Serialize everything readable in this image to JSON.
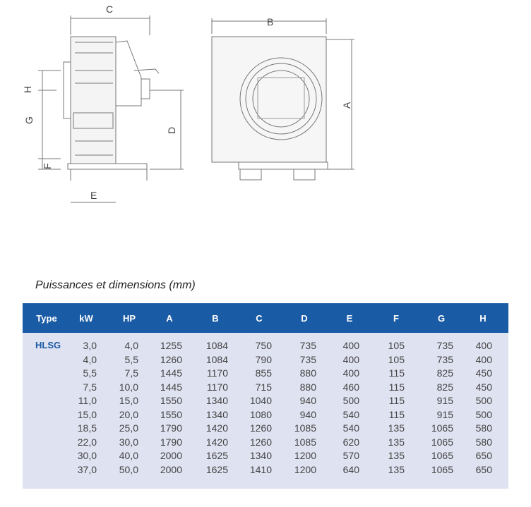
{
  "drawing": {
    "labels": [
      "C",
      "B",
      "A",
      "H",
      "G",
      "D",
      "F",
      "E"
    ]
  },
  "title": "Puissances et dimensions (mm)",
  "table": {
    "headers": [
      "Type",
      "kW",
      "HP",
      "A",
      "B",
      "C",
      "D",
      "E",
      "F",
      "G",
      "H"
    ],
    "type_value": "HLSG",
    "rows": [
      [
        "3,0",
        "4,0",
        "1255",
        "1084",
        "750",
        "735",
        "400",
        "105",
        "735",
        "400"
      ],
      [
        "4,0",
        "5,5",
        "1260",
        "1084",
        "790",
        "735",
        "400",
        "105",
        "735",
        "400"
      ],
      [
        "5,5",
        "7,5",
        "1445",
        "1170",
        "855",
        "880",
        "400",
        "115",
        "825",
        "450"
      ],
      [
        "7,5",
        "10,0",
        "1445",
        "1170",
        "715",
        "880",
        "460",
        "115",
        "825",
        "450"
      ],
      [
        "11,0",
        "15,0",
        "1550",
        "1340",
        "1040",
        "940",
        "500",
        "115",
        "915",
        "500"
      ],
      [
        "15,0",
        "20,0",
        "1550",
        "1340",
        "1080",
        "940",
        "540",
        "115",
        "915",
        "500"
      ],
      [
        "18,5",
        "25,0",
        "1790",
        "1420",
        "1260",
        "1085",
        "540",
        "135",
        "1065",
        "580"
      ],
      [
        "22,0",
        "30,0",
        "1790",
        "1420",
        "1260",
        "1085",
        "620",
        "135",
        "1065",
        "580"
      ],
      [
        "30,0",
        "40,0",
        "2000",
        "1625",
        "1340",
        "1200",
        "570",
        "135",
        "1065",
        "650"
      ],
      [
        "37,0",
        "50,0",
        "2000",
        "1625",
        "1410",
        "1200",
        "640",
        "135",
        "1065",
        "650"
      ]
    ]
  },
  "colors": {
    "header_bg": "#1a5ba6",
    "body_bg": "#dfe2f0",
    "type_text": "#1a5ba6"
  }
}
